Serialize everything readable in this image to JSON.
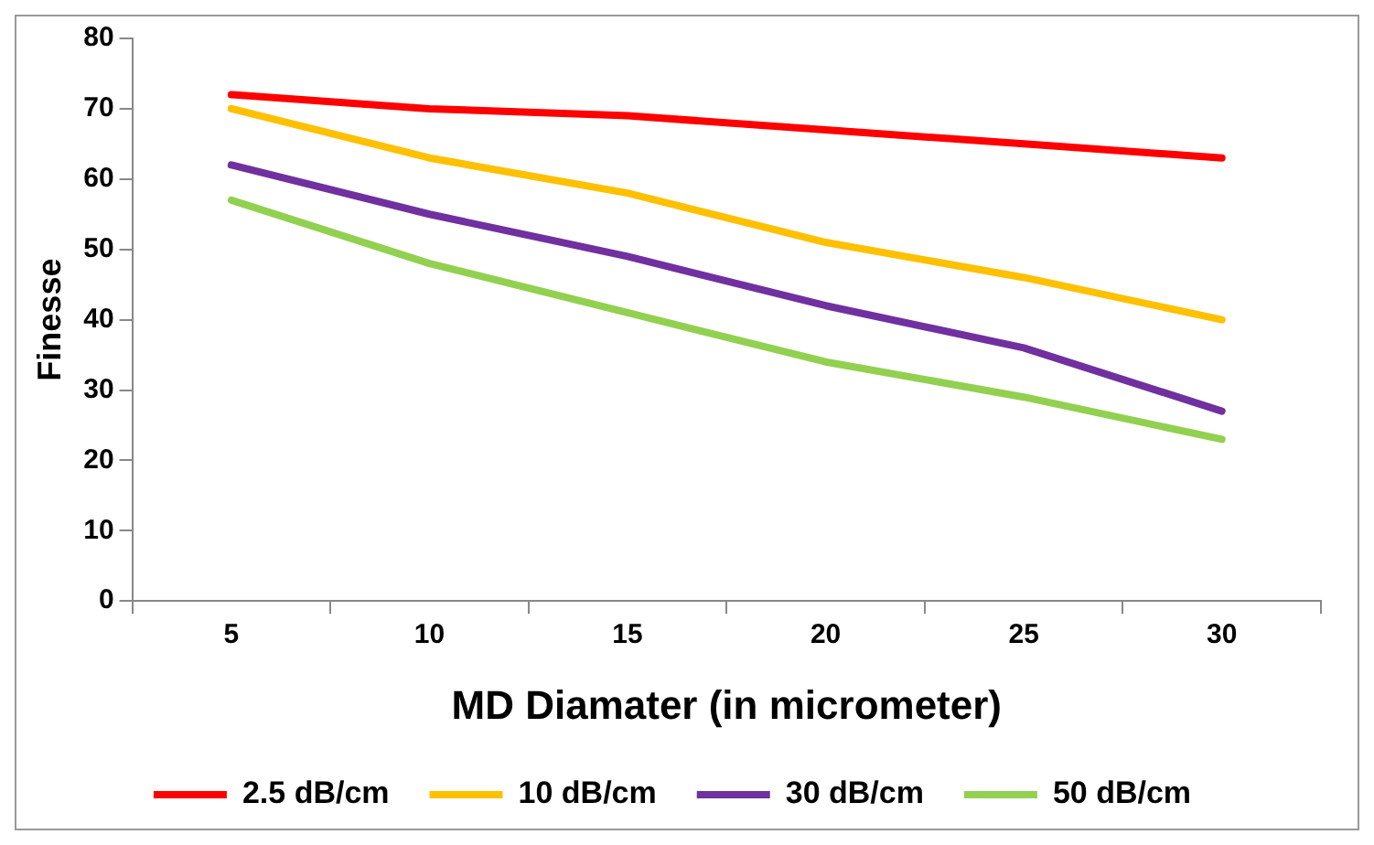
{
  "chart_data": {
    "type": "line",
    "xlabel": "MD Diamater (in micrometer)",
    "ylabel": "Finesse",
    "categories": [
      "5",
      "10",
      "15",
      "20",
      "25",
      "30"
    ],
    "series": [
      {
        "name": "2.5 dB/cm",
        "color": "#ff0000",
        "values": [
          72,
          70,
          69,
          67,
          65,
          63
        ]
      },
      {
        "name": "10 dB/cm",
        "color": "#ffc000",
        "values": [
          70,
          63,
          58,
          51,
          46,
          40
        ]
      },
      {
        "name": "30 dB/cm",
        "color": "#7030a0",
        "values": [
          62,
          55,
          49,
          42,
          36,
          27
        ]
      },
      {
        "name": "50 dB/cm",
        "color": "#92d050",
        "values": [
          57,
          48,
          41,
          34,
          29,
          23
        ]
      }
    ],
    "ylim": [
      0,
      80
    ],
    "yticks": [
      0,
      10,
      20,
      30,
      40,
      50,
      60,
      70,
      80
    ],
    "grid": false,
    "legend": "bottom",
    "marker": "none",
    "line_style": "solid"
  }
}
